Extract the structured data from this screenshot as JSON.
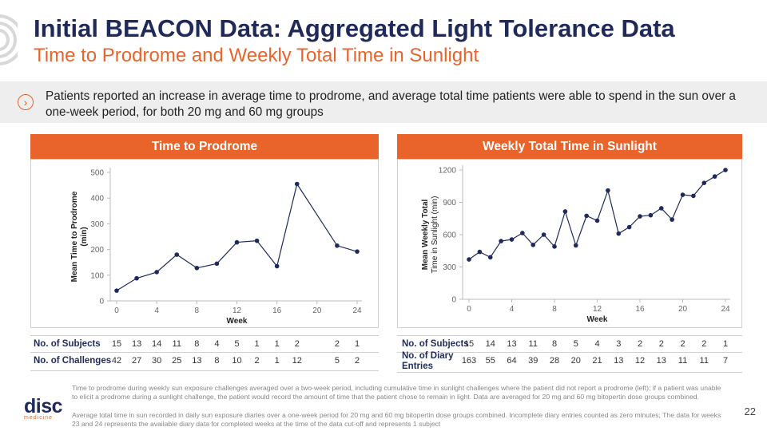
{
  "header": {
    "title": "Initial BEACON Data: Aggregated Light Tolerance Data",
    "subtitle": "Time to Prodrome and Weekly Total Time in Sunlight"
  },
  "banner": {
    "icon": "chevron-right-circle-icon",
    "text": "Patients reported an increase in average time to prodrome, and average total time patients were able to spend in the sun over a one-week period, for both 20 mg and 60 mg groups"
  },
  "colors": {
    "accent": "#e8642a",
    "navy": "#1f2a5a",
    "line": "#1f2a5a"
  },
  "chart_data": [
    {
      "type": "line",
      "panel_title": "Time to Prodrome",
      "xlabel": "Week",
      "ylabel_line1": "Mean Time to Prodrome",
      "ylabel_line2": "(min)",
      "xlim": [
        0,
        24
      ],
      "ylim": [
        0,
        500
      ],
      "xticks": [
        0,
        4,
        8,
        12,
        16,
        20,
        24
      ],
      "yticks": [
        0,
        100,
        200,
        300,
        400,
        500
      ],
      "grid": false,
      "series": [
        {
          "x": [
            0,
            2,
            4,
            6,
            8,
            10,
            12,
            14,
            16,
            18,
            22,
            24
          ],
          "y": [
            40,
            88,
            112,
            180,
            128,
            145,
            228,
            234,
            135,
            455,
            215,
            192
          ]
        }
      ],
      "table": {
        "rows": [
          {
            "label": "No. of Subjects",
            "values": [
              "15",
              "13",
              "14",
              "11",
              "8",
              "4",
              "5",
              "1",
              "1",
              "2",
              "2",
              "1"
            ]
          },
          {
            "label": "No. of Challenges",
            "values": [
              "42",
              "27",
              "30",
              "25",
              "13",
              "8",
              "10",
              "2",
              "1",
              "12",
              "5",
              "2"
            ]
          }
        ]
      }
    },
    {
      "type": "line",
      "panel_title": "Weekly Total Time in Sunlight",
      "xlabel": "Week",
      "ylabel_line1": "Mean Weekly Total",
      "ylabel_line2": "Time in Sunlight (min)",
      "xlim": [
        0,
        24
      ],
      "ylim": [
        0,
        1200
      ],
      "xticks": [
        0,
        4,
        8,
        12,
        16,
        20,
        24
      ],
      "yticks": [
        0,
        300,
        600,
        900,
        1200
      ],
      "grid": false,
      "series": [
        {
          "x": [
            0,
            1,
            2,
            3,
            4,
            5,
            6,
            7,
            8,
            9,
            10,
            11,
            12,
            13,
            14,
            15,
            16,
            17,
            18,
            19,
            20,
            21,
            22,
            23,
            24
          ],
          "y": [
            370,
            440,
            390,
            540,
            555,
            615,
            505,
            600,
            490,
            815,
            500,
            775,
            730,
            1010,
            610,
            670,
            770,
            780,
            845,
            740,
            970,
            960,
            1080,
            1140,
            1200
          ]
        }
      ],
      "table": {
        "xvalues": [
          0,
          2,
          4,
          6,
          8,
          10,
          12,
          14,
          16,
          18,
          20,
          22,
          24
        ],
        "rows": [
          {
            "label": "No. of Subjects",
            "values": [
              "15",
              "14",
              "13",
              "11",
              "8",
              "5",
              "4",
              "3",
              "2",
              "2",
              "2",
              "2",
              "1"
            ]
          },
          {
            "label": "No. of Diary Entries",
            "values": [
              "163",
              "55",
              "64",
              "39",
              "28",
              "20",
              "21",
              "13",
              "12",
              "13",
              "11",
              "11",
              "7"
            ]
          }
        ]
      }
    }
  ],
  "footnotes": [
    "Time to prodrome during weekly sun exposure challenges averaged over a two-week period, including cumulative time in sunlight challenges where the patient did not report a prodrome (left); if a patient was unable to elicit a prodrome during a sunlight challenge, the patient would record the amount of time that the patient chose to remain in light. Data are averaged for 20 mg and 60 mg bitopertin dose groups combined.",
    "Average total time in sun recorded in daily sun exposure diaries over a one-week period for 20 mg and 60 mg bitopertin dose groups combined. Incomplete diary entries counted as zero minutes; The data for weeks 23 and 24 represents the available diary data for completed weeks at the time of the data cut-off and represents 1 subject"
  ],
  "logo": {
    "main": "disc",
    "sub": "medicine"
  },
  "page_number": "22"
}
